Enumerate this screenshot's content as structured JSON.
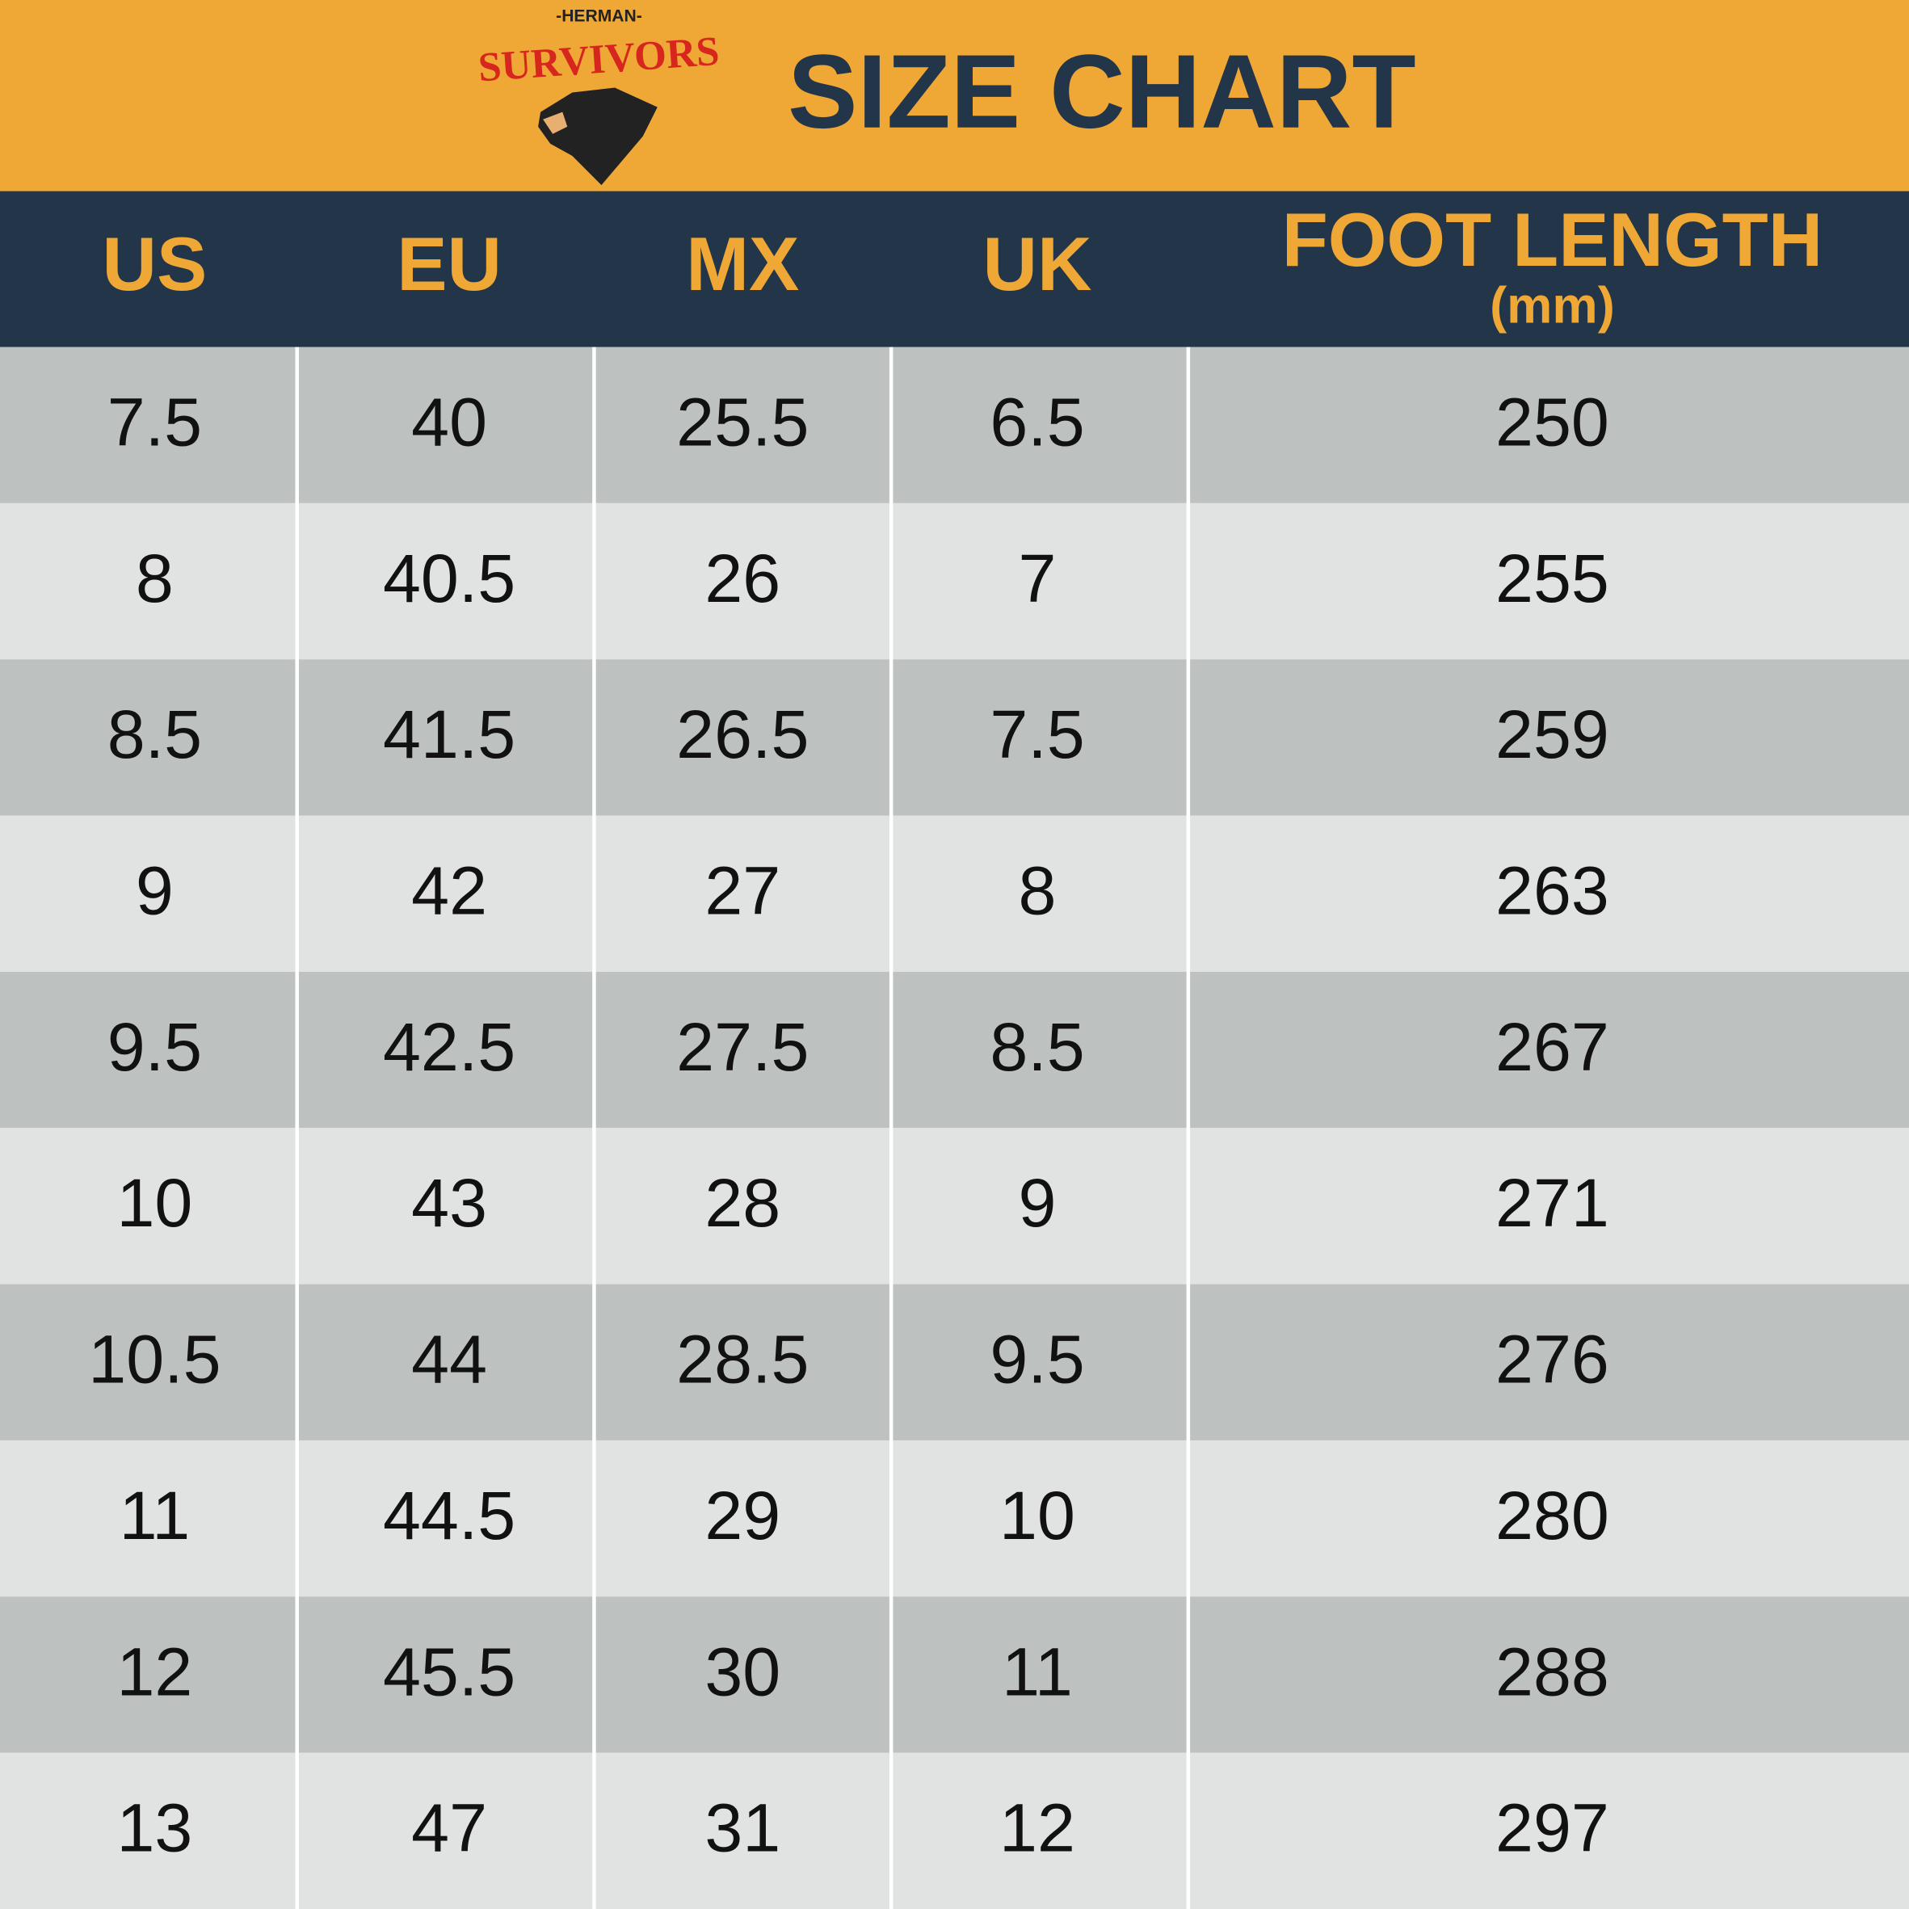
{
  "header": {
    "brand_top": "-HERMAN-",
    "brand": "SURVIVORS",
    "title": "SIZE CHART"
  },
  "table": {
    "columns": [
      "US",
      "EU",
      "MX",
      "UK",
      "FOOT LENGTH"
    ],
    "column_unit": "(mm)",
    "rows": [
      [
        "7.5",
        "40",
        "25.5",
        "6.5",
        "250"
      ],
      [
        "8",
        "40.5",
        "26",
        "7",
        "255"
      ],
      [
        "8.5",
        "41.5",
        "26.5",
        "7.5",
        "259"
      ],
      [
        "9",
        "42",
        "27",
        "8",
        "263"
      ],
      [
        "9.5",
        "42.5",
        "27.5",
        "8.5",
        "267"
      ],
      [
        "10",
        "43",
        "28",
        "9",
        "271"
      ],
      [
        "10.5",
        "44",
        "28.5",
        "9.5",
        "276"
      ],
      [
        "11",
        "44.5",
        "29",
        "10",
        "280"
      ],
      [
        "12",
        "45.5",
        "30",
        "11",
        "288"
      ],
      [
        "13",
        "47",
        "31",
        "12",
        "297"
      ]
    ]
  }
}
